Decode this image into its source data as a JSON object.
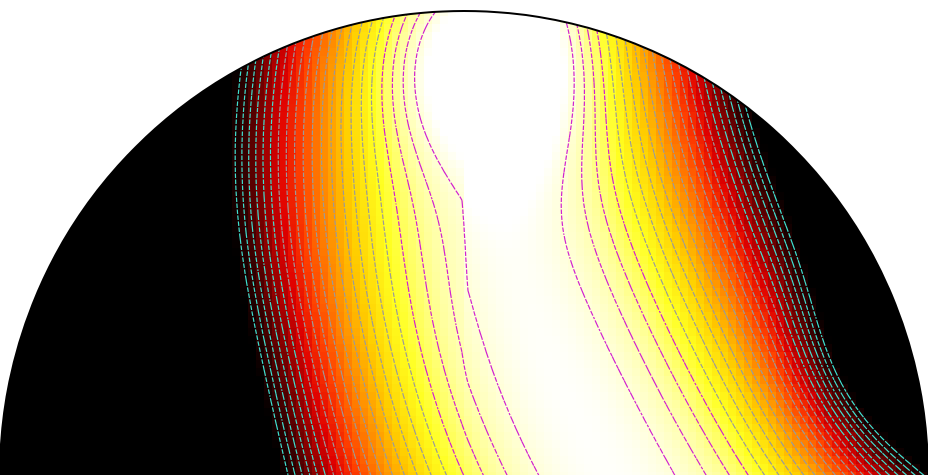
{
  "chart_data": {
    "type": "heatmap",
    "shape": "half-disk",
    "title": "",
    "xlabel": "",
    "ylabel": "",
    "colormap": [
      "#000000",
      "#3a0000",
      "#8b0000",
      "#e00000",
      "#ff4000",
      "#ff8c00",
      "#ffd000",
      "#ffff20",
      "#ffffa0",
      "#ffffff"
    ],
    "contour_colors": {
      "low": "#40e0d0",
      "mid": "#9a9a9a",
      "high": "#d020d0"
    },
    "boundary_color": "#000000",
    "grid": false,
    "legend": "none"
  }
}
